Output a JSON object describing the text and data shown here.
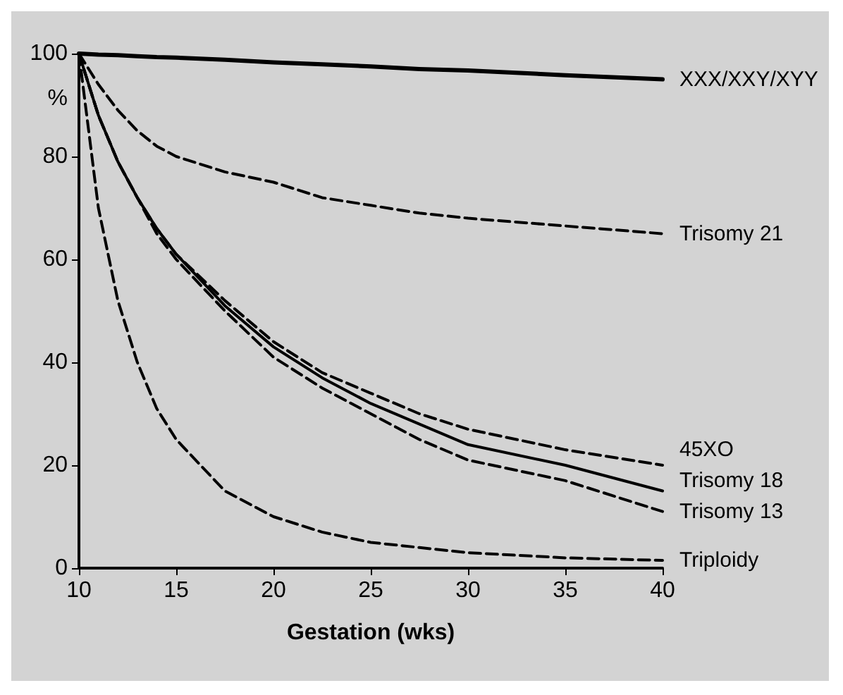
{
  "chart_data": {
    "type": "line",
    "xlabel": "Gestation (wks)",
    "ylabel": "%",
    "xlim": [
      10,
      40
    ],
    "xticks": [
      10,
      15,
      20,
      25,
      30,
      35,
      40
    ],
    "ylim": [
      0,
      100
    ],
    "yticks": [
      0,
      20,
      40,
      60,
      80,
      100
    ],
    "grid": false,
    "legend": false,
    "marker": "none",
    "x": [
      10,
      11,
      12,
      13,
      14,
      15,
      17.5,
      20,
      22.5,
      25,
      27.5,
      30,
      35,
      40
    ],
    "series": [
      {
        "name": "XXX/XXY/XYY",
        "color": "#000000",
        "line_style": "solid",
        "values": [
          100,
          99.8,
          99.7,
          99.5,
          99.3,
          99.2,
          98.8,
          98.3,
          97.9,
          97.5,
          97,
          96.7,
          95.8,
          95
        ]
      },
      {
        "name": "Trisomy 21",
        "color": "#000000",
        "line_style": "dashed",
        "values": [
          100,
          94,
          89,
          85,
          82,
          80,
          77,
          75,
          72,
          70.5,
          69,
          68,
          66.5,
          65
        ]
      },
      {
        "name": "45XO",
        "color": "#000000",
        "line_style": "dashed",
        "values": [
          100,
          88,
          79,
          72,
          66,
          61,
          52,
          44,
          38,
          34,
          30,
          27,
          23,
          20
        ]
      },
      {
        "name": "Trisomy 18",
        "color": "#000000",
        "line_style": "solid",
        "values": [
          100,
          88,
          79,
          72,
          66,
          61,
          51,
          43,
          37,
          32,
          28,
          24,
          20,
          15
        ]
      },
      {
        "name": "Trisomy 13",
        "color": "#000000",
        "line_style": "dashed",
        "values": [
          100,
          88,
          79,
          72,
          65,
          60,
          50,
          41,
          35,
          30,
          25,
          21,
          17,
          11
        ]
      },
      {
        "name": "Triploidy",
        "color": "#000000",
        "line_style": "dashed",
        "values": [
          100,
          70,
          52,
          40,
          31,
          25,
          15,
          10,
          7,
          5,
          4,
          3,
          2,
          1.5
        ]
      }
    ]
  }
}
